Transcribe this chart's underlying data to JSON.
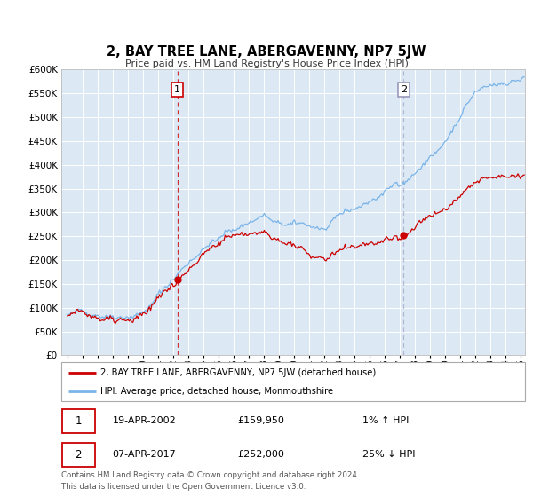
{
  "title": "2, BAY TREE LANE, ABERGAVENNY, NP7 5JW",
  "subtitle": "Price paid vs. HM Land Registry's House Price Index (HPI)",
  "plot_bg_color": "#dce9f5",
  "hpi_color": "#7ab4e8",
  "house_color": "#cc0000",
  "marker_color": "#cc0000",
  "sale1_year": 2002.29,
  "sale1_price": 159950,
  "sale1_date": "19-APR-2002",
  "sale1_pct": "1%",
  "sale1_dir": "↑",
  "sale2_year": 2017.27,
  "sale2_price": 252000,
  "sale2_date": "07-APR-2017",
  "sale2_pct": "25%",
  "sale2_dir": "↓",
  "legend_line1": "2, BAY TREE LANE, ABERGAVENNY, NP7 5JW (detached house)",
  "legend_line2": "HPI: Average price, detached house, Monmouthshire",
  "footer1": "Contains HM Land Registry data © Crown copyright and database right 2024.",
  "footer2": "This data is licensed under the Open Government Licence v3.0.",
  "ylim_min": 0,
  "ylim_max": 600000,
  "xlim_min": 1994.6,
  "xlim_max": 2025.3
}
